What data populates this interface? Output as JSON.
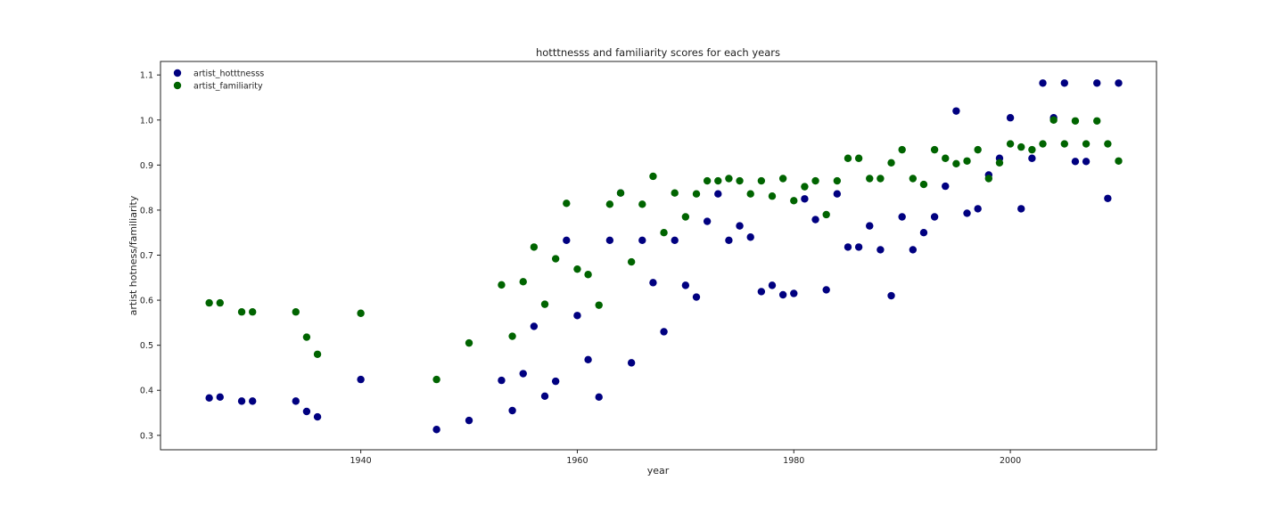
{
  "chart_data": {
    "type": "scatter",
    "title": "hotttnesss and familiarity scores for each years",
    "xlabel": "year",
    "ylabel": "artist hotness/familiarity",
    "xlim": [
      1921.5,
      2013.5
    ],
    "ylim": [
      0.268,
      1.13
    ],
    "xticks": [
      1940,
      1960,
      1980,
      2000
    ],
    "yticks": [
      0.3,
      0.4,
      0.5,
      0.6,
      0.7,
      0.8,
      0.9,
      1.0,
      1.1
    ],
    "grid": false,
    "legend_position": "top-left",
    "series": [
      {
        "name": "artist_hotttnesss",
        "color": "#000080",
        "points": [
          [
            1926,
            0.383
          ],
          [
            1927,
            0.385
          ],
          [
            1929,
            0.376
          ],
          [
            1930,
            0.376
          ],
          [
            1934,
            0.376
          ],
          [
            1935,
            0.353
          ],
          [
            1936,
            0.341
          ],
          [
            1940,
            0.424
          ],
          [
            1947,
            0.313
          ],
          [
            1950,
            0.333
          ],
          [
            1953,
            0.422
          ],
          [
            1954,
            0.355
          ],
          [
            1955,
            0.437
          ],
          [
            1956,
            0.542
          ],
          [
            1957,
            0.387
          ],
          [
            1958,
            0.42
          ],
          [
            1959,
            0.733
          ],
          [
            1960,
            0.566
          ],
          [
            1961,
            0.468
          ],
          [
            1962,
            0.385
          ],
          [
            1963,
            0.733
          ],
          [
            1964,
            0.838
          ],
          [
            1965,
            0.461
          ],
          [
            1966,
            0.733
          ],
          [
            1967,
            0.639
          ],
          [
            1968,
            0.53
          ],
          [
            1969,
            0.733
          ],
          [
            1970,
            0.633
          ],
          [
            1971,
            0.607
          ],
          [
            1972,
            0.775
          ],
          [
            1973,
            0.836
          ],
          [
            1974,
            0.733
          ],
          [
            1975,
            0.765
          ],
          [
            1976,
            0.74
          ],
          [
            1977,
            0.619
          ],
          [
            1978,
            0.633
          ],
          [
            1979,
            0.612
          ],
          [
            1980,
            0.615
          ],
          [
            1981,
            0.825
          ],
          [
            1982,
            0.779
          ],
          [
            1983,
            0.623
          ],
          [
            1984,
            0.836
          ],
          [
            1985,
            0.718
          ],
          [
            1986,
            0.718
          ],
          [
            1987,
            0.765
          ],
          [
            1988,
            0.712
          ],
          [
            1989,
            0.61
          ],
          [
            1990,
            0.785
          ],
          [
            1991,
            0.712
          ],
          [
            1992,
            0.75
          ],
          [
            1993,
            0.785
          ],
          [
            1994,
            0.853
          ],
          [
            1995,
            1.02
          ],
          [
            1996,
            0.793
          ],
          [
            1997,
            0.803
          ],
          [
            1998,
            0.878
          ],
          [
            1999,
            0.915
          ],
          [
            2000,
            1.005
          ],
          [
            2001,
            0.803
          ],
          [
            2002,
            0.915
          ],
          [
            2003,
            1.082
          ],
          [
            2004,
            1.005
          ],
          [
            2005,
            1.082
          ],
          [
            2006,
            0.908
          ],
          [
            2007,
            0.908
          ],
          [
            2008,
            1.082
          ],
          [
            2009,
            0.826
          ],
          [
            2010,
            1.082
          ]
        ]
      },
      {
        "name": "artist_familiarity",
        "color": "#006400",
        "points": [
          [
            1926,
            0.594
          ],
          [
            1927,
            0.594
          ],
          [
            1929,
            0.574
          ],
          [
            1930,
            0.574
          ],
          [
            1934,
            0.574
          ],
          [
            1935,
            0.518
          ],
          [
            1936,
            0.48
          ],
          [
            1940,
            0.571
          ],
          [
            1947,
            0.424
          ],
          [
            1950,
            0.505
          ],
          [
            1953,
            0.634
          ],
          [
            1954,
            0.52
          ],
          [
            1955,
            0.641
          ],
          [
            1956,
            0.718
          ],
          [
            1957,
            0.591
          ],
          [
            1958,
            0.692
          ],
          [
            1959,
            0.815
          ],
          [
            1960,
            0.669
          ],
          [
            1961,
            0.657
          ],
          [
            1962,
            0.589
          ],
          [
            1963,
            0.813
          ],
          [
            1964,
            0.838
          ],
          [
            1965,
            0.685
          ],
          [
            1966,
            0.813
          ],
          [
            1967,
            0.875
          ],
          [
            1968,
            0.75
          ],
          [
            1969,
            0.838
          ],
          [
            1970,
            0.785
          ],
          [
            1971,
            0.836
          ],
          [
            1972,
            0.865
          ],
          [
            1973,
            0.865
          ],
          [
            1974,
            0.87
          ],
          [
            1975,
            0.865
          ],
          [
            1976,
            0.836
          ],
          [
            1977,
            0.865
          ],
          [
            1978,
            0.831
          ],
          [
            1979,
            0.87
          ],
          [
            1980,
            0.821
          ],
          [
            1981,
            0.852
          ],
          [
            1982,
            0.865
          ],
          [
            1983,
            0.79
          ],
          [
            1984,
            0.865
          ],
          [
            1985,
            0.915
          ],
          [
            1986,
            0.915
          ],
          [
            1987,
            0.87
          ],
          [
            1988,
            0.87
          ],
          [
            1989,
            0.905
          ],
          [
            1990,
            0.934
          ],
          [
            1991,
            0.87
          ],
          [
            1992,
            0.857
          ],
          [
            1993,
            0.934
          ],
          [
            1994,
            0.915
          ],
          [
            1995,
            0.903
          ],
          [
            1996,
            0.909
          ],
          [
            1997,
            0.934
          ],
          [
            1998,
            0.87
          ],
          [
            1999,
            0.905
          ],
          [
            2000,
            0.947
          ],
          [
            2001,
            0.94
          ],
          [
            2002,
            0.934
          ],
          [
            2003,
            0.947
          ],
          [
            2004,
            1.0
          ],
          [
            2005,
            0.947
          ],
          [
            2006,
            0.998
          ],
          [
            2007,
            0.947
          ],
          [
            2008,
            0.998
          ],
          [
            2009,
            0.947
          ],
          [
            2010,
            0.909
          ]
        ]
      }
    ]
  }
}
